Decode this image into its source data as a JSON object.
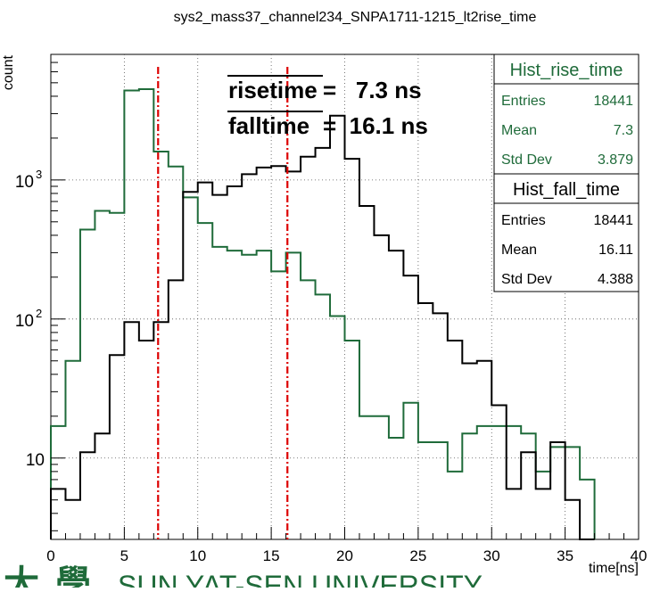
{
  "chart_data": {
    "type": "histogram",
    "title": "sys2_mass37_channel234_SNPA1711-1215_lt2rise_time",
    "xlabel": "time[ns]",
    "ylabel": "count",
    "xlim": [
      0,
      40
    ],
    "ylim": [
      2.6,
      8000
    ],
    "y_scale": "log",
    "grid": true,
    "x_ticks": [
      "0",
      "5",
      "10",
      "15",
      "20",
      "25",
      "30",
      "35",
      "40"
    ],
    "y_ticks": [
      {
        "value": 10,
        "label": "10"
      },
      {
        "value": 100,
        "label": "10",
        "exp": "2"
      },
      {
        "value": 1000,
        "label": "10",
        "exp": "3"
      }
    ],
    "bin_width": 1,
    "series": [
      {
        "name": "Hist_rise_time",
        "color": "#1f6b3a",
        "bins_start": 0,
        "values": [
          17,
          50,
          440,
          600,
          580,
          4400,
          4500,
          1600,
          1250,
          750,
          490,
          330,
          310,
          290,
          310,
          220,
          300,
          190,
          150,
          105,
          70,
          20,
          20,
          14,
          25,
          13,
          13,
          8,
          15,
          17,
          17,
          17,
          15,
          8,
          12,
          12,
          7
        ]
      },
      {
        "name": "Hist_fall_time",
        "color": "#000000",
        "bins_start": 0,
        "values": [
          6,
          5,
          11,
          15,
          55,
          95,
          70,
          95,
          190,
          820,
          960,
          780,
          900,
          1100,
          1230,
          1260,
          1150,
          1470,
          1700,
          2900,
          1420,
          650,
          400,
          310,
          205,
          130,
          110,
          70,
          48,
          50,
          24,
          6,
          11,
          6,
          13,
          5,
          2
        ]
      }
    ],
    "vertical_lines": [
      {
        "x": 7.3,
        "color": "#dd0000",
        "style": "dash-dot"
      },
      {
        "x": 16.1,
        "color": "#dd0000",
        "style": "dash-dot"
      }
    ],
    "annotations": {
      "rise_name": "risetime",
      "rise_value": "=   7.3 ns",
      "fall_name": "falltime",
      "fall_value": "=  16.1 ns"
    },
    "stats_boxes": [
      {
        "title": "Hist_rise_time",
        "color": "#1f6b3a",
        "rows": [
          {
            "label": "Entries",
            "value": "18441"
          },
          {
            "label": "Mean",
            "value": "7.3"
          },
          {
            "label": "Std Dev",
            "value": "3.879"
          }
        ]
      },
      {
        "title": "Hist_fall_time",
        "color": "#000000",
        "rows": [
          {
            "label": "Entries",
            "value": "18441"
          },
          {
            "label": "Mean",
            "value": "16.11"
          },
          {
            "label": "Std Dev",
            "value": "4.388"
          }
        ]
      }
    ],
    "watermark": "SUN YAT-SEN UNIVERSITY",
    "watermark_color": "#1f6b3a"
  }
}
